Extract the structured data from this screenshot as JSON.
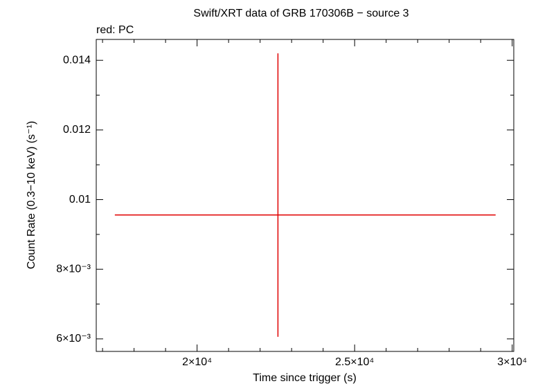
{
  "chart_data": {
    "type": "errorbar",
    "title": "Swift/XRT data of GRB 170306B − source 3",
    "subtitle": "red: PC",
    "x_label": "Time since trigger (s)",
    "y_label": "Count Rate (0.3−10 keV) (s⁻¹)",
    "series": [
      {
        "color": "#e00000",
        "x": [
          22566
        ],
        "xerr_minus": [
          5176
        ],
        "xerr_plus": [
          6908
        ],
        "values": [
          0.00956
        ],
        "yerr_minus": [
          0.0035
        ],
        "yerr_plus": [
          0.00464
        ]
      }
    ],
    "xlim": [
      16800,
      30050
    ],
    "ylim": [
      0.00564,
      0.0146
    ],
    "xticks": [
      {
        "value": 20000,
        "label": "2×10⁴"
      },
      {
        "value": 25000,
        "label": "2.5×10⁴"
      },
      {
        "value": 30000,
        "label": "3×10⁴"
      }
    ],
    "yticks": [
      {
        "value": 0.006,
        "label": "6×10⁻³"
      },
      {
        "value": 0.008,
        "label": "8×10⁻³"
      },
      0.01,
      0.012,
      0.014
    ],
    "xminorticks": [
      17000,
      18000,
      19000,
      21000,
      22000,
      23000,
      24000,
      26000,
      27000,
      28000,
      29000
    ],
    "yminorticks": [
      0.007,
      0.009,
      0.011,
      0.013
    ]
  }
}
